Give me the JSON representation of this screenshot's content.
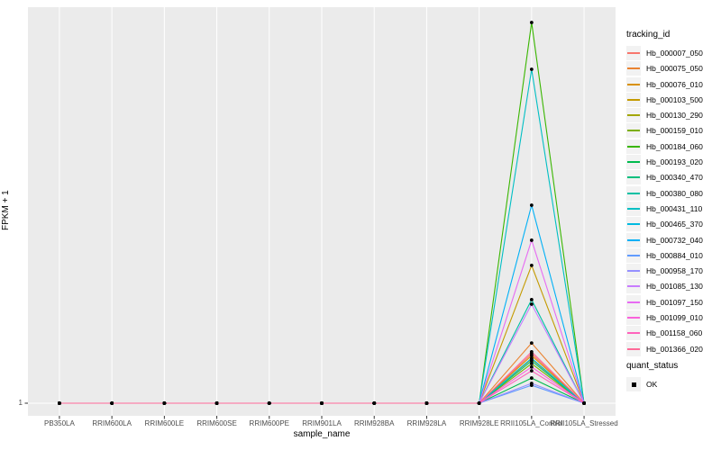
{
  "figure": {
    "background": "#FFFFFF",
    "panel_background": "#EBEBEB",
    "gridline_color": "#FFFFFF",
    "tick_color": "#333333",
    "tick_label_color": "#4D4D4D"
  },
  "chart_data": {
    "type": "line",
    "title": "",
    "xlabel": "sample_name",
    "ylabel": "FPKM + 1",
    "legend_position": "right",
    "grid": true,
    "categories": [
      "PB350LA",
      "RRIM600LA",
      "RRIM600LE",
      "RRIM600SE",
      "RRIM600PE",
      "RRIM901LA",
      "RRIM928BA",
      "RRIM928LA",
      "RRIM928LE",
      "RRII105LA_Control",
      "RRII105LA_Stressed"
    ],
    "y_axis": {
      "tick_labels": [
        "1"
      ],
      "baseline_value": 1,
      "note": "Only the value 1 is labeled on the y axis. All samples sit at FPKM+1 = 1 except RRII105LA_Control, where each transcript spikes; spike heights are recorded as control_peak_fraction = fraction of the panel height above the 1 line."
    },
    "spike_category": "RRII105LA_Control",
    "point_color": "#000000",
    "series": [
      {
        "name": "Hb_000007_050",
        "color": "#F8766D",
        "control_peak_fraction": 0.13
      },
      {
        "name": "Hb_000075_050",
        "color": "#EA8331",
        "control_peak_fraction": 0.158
      },
      {
        "name": "Hb_000076_010",
        "color": "#D89000",
        "control_peak_fraction": 0.125
      },
      {
        "name": "Hb_000103_500",
        "color": "#C49A00",
        "control_peak_fraction": 0.362
      },
      {
        "name": "Hb_000130_290",
        "color": "#A3A500",
        "control_peak_fraction": 0.116
      },
      {
        "name": "Hb_000159_010",
        "color": "#7CAE00",
        "control_peak_fraction": 0.104
      },
      {
        "name": "Hb_000184_060",
        "color": "#39B600",
        "control_peak_fraction": 1.0
      },
      {
        "name": "Hb_000193_020",
        "color": "#00BB4E",
        "control_peak_fraction": 0.066
      },
      {
        "name": "Hb_000340_470",
        "color": "#00BF7D",
        "control_peak_fraction": 0.111
      },
      {
        "name": "Hb_000380_080",
        "color": "#00C1A3",
        "control_peak_fraction": 0.272
      },
      {
        "name": "Hb_000431_110",
        "color": "#00BFC4",
        "control_peak_fraction": 0.877
      },
      {
        "name": "Hb_000465_370",
        "color": "#00BAE0",
        "control_peak_fraction": 0.118
      },
      {
        "name": "Hb_000732_040",
        "color": "#00B0F6",
        "control_peak_fraction": 0.52
      },
      {
        "name": "Hb_000884_010",
        "color": "#619CFF",
        "control_peak_fraction": 0.047
      },
      {
        "name": "Hb_000958_170",
        "color": "#9590FF",
        "control_peak_fraction": 0.052
      },
      {
        "name": "Hb_001085_130",
        "color": "#C77CFF",
        "control_peak_fraction": 0.26
      },
      {
        "name": "Hb_001097_150",
        "color": "#E76BF3",
        "control_peak_fraction": 0.428
      },
      {
        "name": "Hb_001099_010",
        "color": "#FA62DB",
        "control_peak_fraction": 0.095
      },
      {
        "name": "Hb_001158_060",
        "color": "#FF62BC",
        "control_peak_fraction": 0.085
      },
      {
        "name": "Hb_001366_020",
        "color": "#FF6A98",
        "control_peak_fraction": 0.135
      }
    ]
  },
  "legend": {
    "tracking_title": "tracking_id",
    "quant_title": "quant_status",
    "quant_item": "OK",
    "key_background": "#F2F2F2"
  }
}
